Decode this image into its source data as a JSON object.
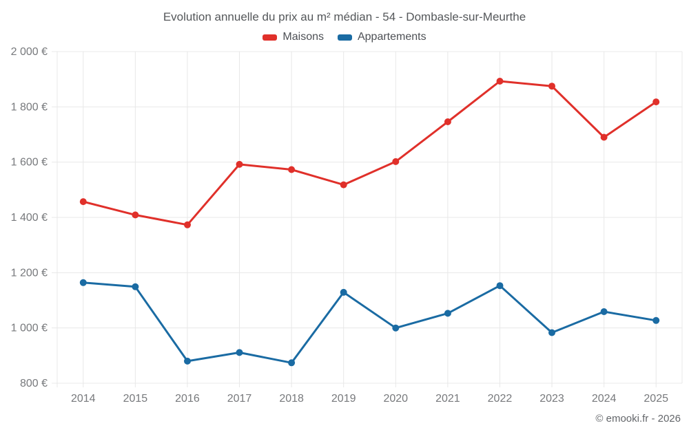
{
  "title": "Evolution annuelle du prix au m² médian - 54 - Dombasle-sur-Meurthe",
  "legend": [
    {
      "label": "Maisons",
      "color": "#e0302a"
    },
    {
      "label": "Appartements",
      "color": "#1a6ba3"
    }
  ],
  "footer": {
    "text": "© emooki.fr - 2026"
  },
  "colors": {
    "grid": "#e8e8e8",
    "tick_text": "#77797c",
    "maisons": "#e0302a",
    "appartements": "#1a6ba3",
    "background": "#ffffff"
  },
  "chart_data": {
    "type": "line",
    "title": "Evolution annuelle du prix au m² médian - 54 - Dombasle-sur-Meurthe",
    "categories": [
      "2014",
      "2015",
      "2016",
      "2017",
      "2018",
      "2019",
      "2020",
      "2021",
      "2022",
      "2023",
      "2024",
      "2025"
    ],
    "series": [
      {
        "name": "Maisons",
        "color": "#e0302a",
        "values": [
          1457,
          1409,
          1373,
          1592,
          1573,
          1518,
          1602,
          1746,
          1893,
          1875,
          1690,
          1818
        ]
      },
      {
        "name": "Appartements",
        "color": "#1a6ba3",
        "values": [
          1164,
          1149,
          880,
          911,
          874,
          1129,
          1000,
          1053,
          1153,
          983,
          1059,
          1027
        ]
      }
    ],
    "xlabel": "",
    "ylabel": "",
    "ylim": [
      800,
      2000
    ],
    "y_ticks": [
      2000,
      1800,
      1600,
      1400,
      1200,
      1000,
      800
    ],
    "y_tick_labels": [
      "2 000 €",
      "1 800 €",
      "1 600 €",
      "1 400 €",
      "1 200 €",
      "1 000 €",
      "800 €"
    ],
    "grid": true,
    "legend_position": "top",
    "marker_radius": 5,
    "line_width": 3
  }
}
